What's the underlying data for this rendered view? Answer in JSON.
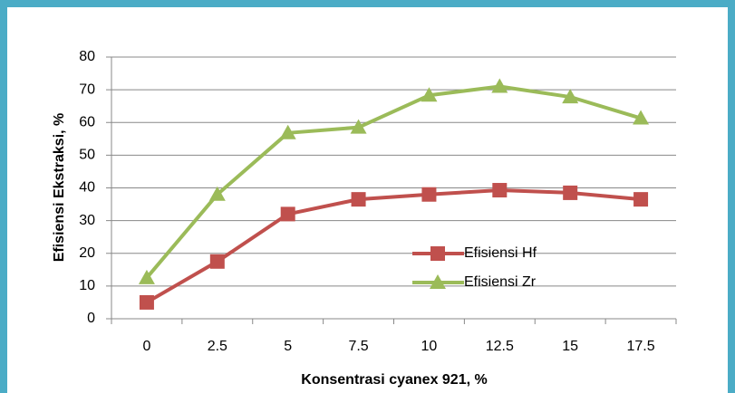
{
  "chart_data": {
    "type": "line",
    "xlabel": "Konsentrasi cyanex 921,  %",
    "ylabel": "Efisiensi Ekstraksi, %",
    "categories": [
      "0",
      "2.5",
      "5",
      "7.5",
      "10",
      "12.5",
      "15",
      "17.5"
    ],
    "series": [
      {
        "name": "Efisiensi Hf",
        "color": "#c0504d",
        "marker": "square",
        "values": [
          5,
          17.5,
          32,
          36.5,
          38,
          39.3,
          38.5,
          36.5
        ]
      },
      {
        "name": "Efisiensi Zr",
        "color": "#9bbb59",
        "marker": "triangle",
        "values": [
          12.5,
          38,
          56.8,
          58.5,
          68.3,
          71,
          67.8,
          61.3
        ]
      }
    ],
    "ylim": [
      0,
      80
    ],
    "yticks": [
      0,
      10,
      20,
      30,
      40,
      50,
      60,
      70,
      80
    ],
    "grid": true
  }
}
